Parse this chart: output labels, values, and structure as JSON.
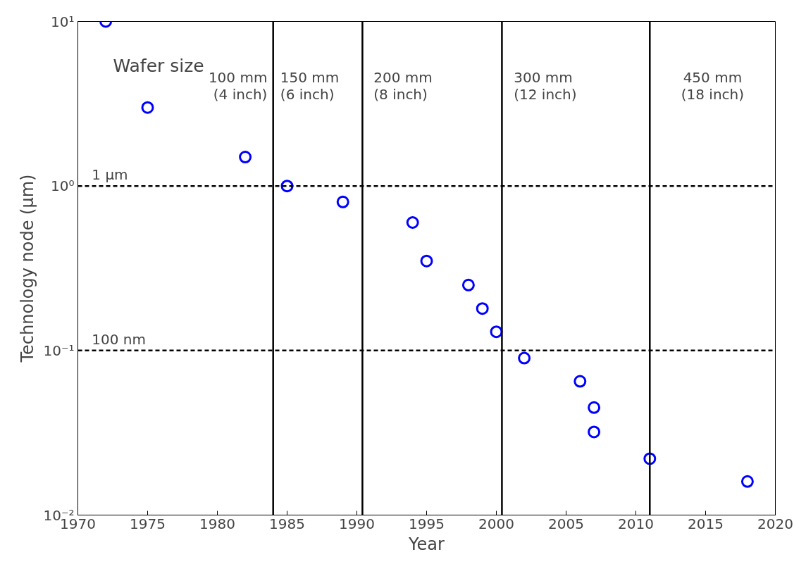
{
  "chart_data": {
    "type": "scatter",
    "xlabel": "Year",
    "ylabel": "Technology node (µm)",
    "x": [
      1972,
      1975,
      1982,
      1985,
      1989,
      1994,
      1995,
      1998,
      1999,
      2000,
      2002,
      2006,
      2007,
      2007,
      2011,
      2018
    ],
    "series": [
      {
        "color": "#0000ff",
        "values": [
          10,
          3,
          1.5,
          1.0,
          0.8,
          0.6,
          0.35,
          0.25,
          0.18,
          0.13,
          0.09,
          0.065,
          0.045,
          0.032,
          0.022,
          0.016
        ]
      }
    ],
    "log": "y",
    "marker": "circle",
    "grid": false,
    "xlim": [
      1970,
      2020
    ],
    "xticks": [
      1970,
      1975,
      1980,
      1985,
      1990,
      1995,
      2000,
      2005,
      2010,
      2015,
      2020
    ],
    "ylim": [
      0.01,
      10
    ],
    "yticks": [
      {
        "value": 0.01,
        "label": "10⁻²"
      },
      {
        "value": 0.1,
        "label": "10⁻¹"
      },
      {
        "value": 1,
        "label": "10⁰"
      },
      {
        "value": 10,
        "label": "10¹"
      }
    ],
    "ref_lines": [
      {
        "axis": "y",
        "value": 1,
        "label": "1 µm",
        "line_style": "dashed",
        "color": "#000000"
      },
      {
        "axis": "y",
        "value": 0.1,
        "label": "100 nm",
        "line_style": "dashed",
        "color": "#000000"
      },
      {
        "axis": "x",
        "value": 1984,
        "label": null,
        "line_style": "solid",
        "color": "#000000"
      },
      {
        "axis": "x",
        "value": 1990.4,
        "label": null,
        "line_style": "solid",
        "color": "#000000"
      },
      {
        "axis": "x",
        "value": 2000.4,
        "label": null,
        "line_style": "solid",
        "color": "#000000"
      },
      {
        "axis": "x",
        "value": 2011,
        "label": null,
        "line_style": "solid",
        "color": "#000000"
      }
    ],
    "annotations": [
      "Wafer size",
      "100 mm\n(4 inch)",
      "150 mm\n(6 inch)",
      "200 mm\n(8 inch)",
      "300 mm\n(12 inch)",
      "450 mm\n(18 inch)"
    ]
  }
}
